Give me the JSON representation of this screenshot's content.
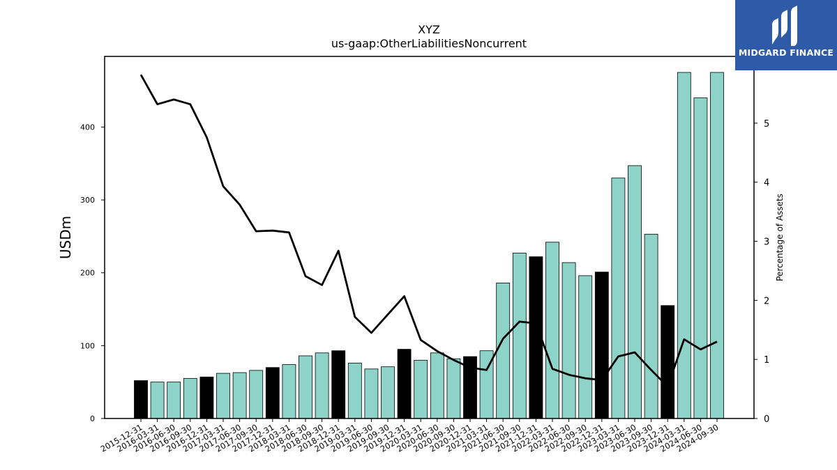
{
  "logo": {
    "text": "MIDGARD FINANCE",
    "icon": "midgard-logo-icon",
    "background": "#2f5aa8"
  },
  "chart_data": {
    "type": "bar",
    "title": "XYZ",
    "subtitle": "us-gaap:OtherLiabilitiesNoncurrent",
    "ylabel": "USDm",
    "ylabel_right": "Percentage of Assets",
    "ylim": [
      0,
      497
    ],
    "ylim_right": [
      0,
      6.13
    ],
    "yticks": [
      0,
      100,
      200,
      300,
      400
    ],
    "yticks_right": [
      0,
      1,
      2,
      3,
      4,
      5
    ],
    "grid": false,
    "colors": {
      "quarter": "#8dd3c7",
      "year_end": "#000000",
      "line": "#000000"
    },
    "categories": [
      "2015-12-31",
      "2016-03-31",
      "2016-06-30",
      "2016-09-30",
      "2016-12-31",
      "2017-03-31",
      "2017-06-30",
      "2017-09-30",
      "2017-12-31",
      "2018-03-31",
      "2018-06-30",
      "2018-09-30",
      "2018-12-31",
      "2019-03-31",
      "2019-06-30",
      "2019-09-30",
      "2019-12-31",
      "2020-03-31",
      "2020-06-30",
      "2020-09-30",
      "2020-12-31",
      "2021-03-31",
      "2021-06-30",
      "2021-09-30",
      "2021-12-31",
      "2022-03-31",
      "2022-06-30",
      "2022-09-30",
      "2022-12-31",
      "2023-03-31",
      "2023-06-30",
      "2023-09-30",
      "2023-12-31",
      "2024-03-31",
      "2024-06-30",
      "2024-09-30"
    ],
    "series": [
      {
        "type": "bar",
        "axis": "left",
        "values": [
          52,
          50,
          50,
          55,
          57,
          62,
          63,
          66,
          70,
          74,
          86,
          90,
          93,
          76,
          68,
          71,
          95,
          80,
          90,
          82,
          85,
          93,
          186,
          227,
          222,
          242,
          214,
          196,
          201,
          330,
          347,
          253,
          155,
          475,
          440,
          475
        ]
      },
      {
        "type": "line",
        "axis": "right",
        "values": [
          5.82,
          5.32,
          5.4,
          5.32,
          4.76,
          3.93,
          3.62,
          3.17,
          3.18,
          3.15,
          2.41,
          2.26,
          2.84,
          1.72,
          1.45,
          1.76,
          2.07,
          1.33,
          1.14,
          0.99,
          0.86,
          0.82,
          1.35,
          1.64,
          1.61,
          0.84,
          0.74,
          0.68,
          0.65,
          1.05,
          1.12,
          0.82,
          0.54,
          1.34,
          1.17,
          1.3
        ]
      }
    ]
  }
}
